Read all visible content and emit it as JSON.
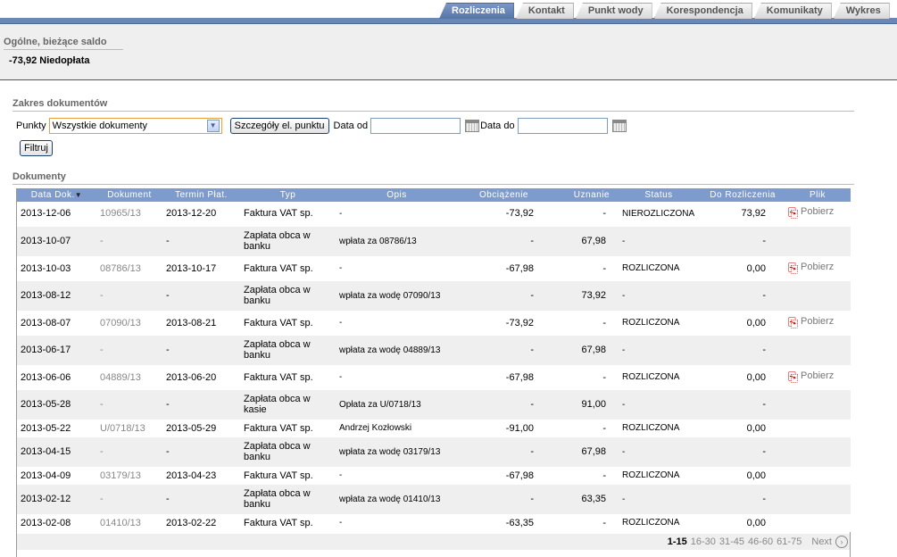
{
  "tabs": [
    {
      "label": "Rozliczenia",
      "active": true
    },
    {
      "label": "Kontakt",
      "active": false
    },
    {
      "label": "Punkt wody",
      "active": false
    },
    {
      "label": "Korespondencja",
      "active": false
    },
    {
      "label": "Komunikaty",
      "active": false
    },
    {
      "label": "Wykres",
      "active": false
    }
  ],
  "saldo": {
    "title": "Ogólne, bieżące saldo",
    "value": "-73,92 Niedopłata"
  },
  "range": {
    "title": "Zakres dokumentów",
    "punkty_label": "Punkty",
    "punkty_value": "Wszystkie dokumenty",
    "details_button": "Szczegóły el. punktu",
    "date_from_label": "Data od",
    "date_to_label": "Data do",
    "filter_button": "Filtruj"
  },
  "documents": {
    "title": "Dokumenty",
    "columns": [
      "Data Dok.",
      "Dokument",
      "Termin Płat.",
      "Typ",
      "Opis",
      "Obciążenie",
      "Uznanie",
      "Status",
      "Do Rozliczenia",
      "Plik"
    ],
    "sort_indicator": "▼",
    "download_label": "Pobierz",
    "rows": [
      {
        "data": "2013-12-06",
        "dok": "10965/13",
        "termin": "2013-12-20",
        "typ": "Faktura VAT sp.",
        "opis": "-",
        "obc": "-73,92",
        "uzn": "-",
        "status": "NIEROZLICZONA",
        "dorozl": "73,92",
        "plik": true
      },
      {
        "data": "2013-10-07",
        "dok": "-",
        "termin": "-",
        "typ": "Zapłata obca w banku",
        "opis": "wpłata za 08786/13",
        "obc": "-",
        "uzn": "67,98",
        "status": "-",
        "dorozl": "-",
        "plik": false
      },
      {
        "data": "2013-10-03",
        "dok": "08786/13",
        "termin": "2013-10-17",
        "typ": "Faktura VAT sp.",
        "opis": "-",
        "obc": "-67,98",
        "uzn": "-",
        "status": "ROZLICZONA",
        "dorozl": "0,00",
        "plik": true
      },
      {
        "data": "2013-08-12",
        "dok": "-",
        "termin": "-",
        "typ": "Zapłata obca w banku",
        "opis": "wpłata za wodę 07090/13",
        "obc": "-",
        "uzn": "73,92",
        "status": "-",
        "dorozl": "-",
        "plik": false
      },
      {
        "data": "2013-08-07",
        "dok": "07090/13",
        "termin": "2013-08-21",
        "typ": "Faktura VAT sp.",
        "opis": "-",
        "obc": "-73,92",
        "uzn": "-",
        "status": "ROZLICZONA",
        "dorozl": "0,00",
        "plik": true
      },
      {
        "data": "2013-06-17",
        "dok": "-",
        "termin": "-",
        "typ": "Zapłata obca w banku",
        "opis": "wpłata za wodę 04889/13",
        "obc": "-",
        "uzn": "67,98",
        "status": "-",
        "dorozl": "-",
        "plik": false
      },
      {
        "data": "2013-06-06",
        "dok": "04889/13",
        "termin": "2013-06-20",
        "typ": "Faktura VAT sp.",
        "opis": "-",
        "obc": "-67,98",
        "uzn": "-",
        "status": "ROZLICZONA",
        "dorozl": "0,00",
        "plik": true
      },
      {
        "data": "2013-05-28",
        "dok": "-",
        "termin": "-",
        "typ": "Zapłata obca w kasie",
        "opis": "Opłata za U/0718/13",
        "obc": "-",
        "uzn": "91,00",
        "status": "-",
        "dorozl": "-",
        "plik": false
      },
      {
        "data": "2013-05-22",
        "dok": "U/0718/13",
        "termin": "2013-05-29",
        "typ": "Faktura VAT sp.",
        "opis": "Andrzej Kozłowski",
        "obc": "-91,00",
        "uzn": "-",
        "status": "ROZLICZONA",
        "dorozl": "0,00",
        "plik": false
      },
      {
        "data": "2013-04-15",
        "dok": "-",
        "termin": "-",
        "typ": "Zapłata obca w banku",
        "opis": "wpłata za wodę 03179/13",
        "obc": "-",
        "uzn": "67,98",
        "status": "-",
        "dorozl": "-",
        "plik": false
      },
      {
        "data": "2013-04-09",
        "dok": "03179/13",
        "termin": "2013-04-23",
        "typ": "Faktura VAT sp.",
        "opis": "-",
        "obc": "-67,98",
        "uzn": "-",
        "status": "ROZLICZONA",
        "dorozl": "0,00",
        "plik": false
      },
      {
        "data": "2013-02-12",
        "dok": "-",
        "termin": "-",
        "typ": "Zapłata obca w banku",
        "opis": "wpłata za wodę 01410/13",
        "obc": "-",
        "uzn": "63,35",
        "status": "-",
        "dorozl": "-",
        "plik": false
      },
      {
        "data": "2013-02-08",
        "dok": "01410/13",
        "termin": "2013-02-22",
        "typ": "Faktura VAT sp.",
        "opis": "-",
        "obc": "-63,35",
        "uzn": "-",
        "status": "ROZLICZONA",
        "dorozl": "0,00",
        "plik": false
      }
    ],
    "pager": {
      "pages": [
        "1-15",
        "16-30",
        "31-45",
        "46-60",
        "61-75"
      ],
      "current": "1-15",
      "next_label": "Next"
    }
  },
  "colors": {
    "tab_active": "#5e7db0",
    "header_bg": "#7e9bcd",
    "row_alt": "#efefef",
    "pdf_red": "#d00000"
  },
  "icons": {
    "pdf": "pdf-icon",
    "calendar": "calendar-icon",
    "dropdown": "chevron-down-icon",
    "next": "chevron-right-circle-icon"
  }
}
